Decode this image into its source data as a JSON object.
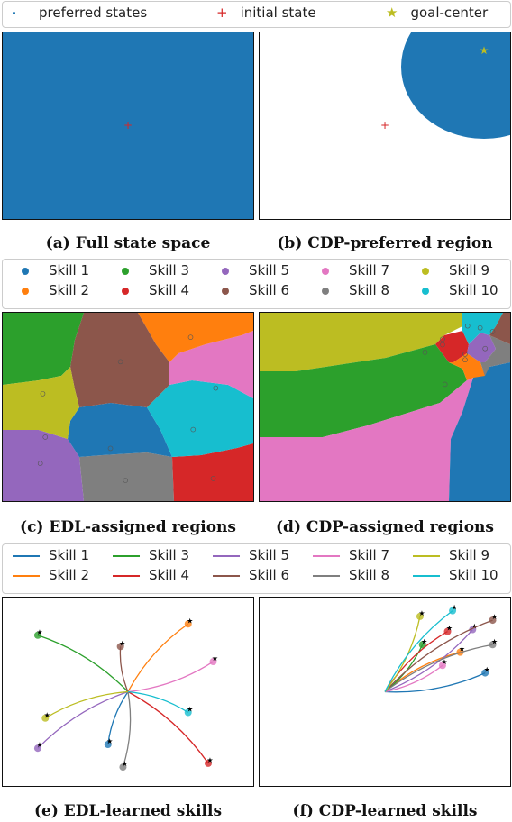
{
  "colors": {
    "skill": [
      "#1f77b4",
      "#ff7f0e",
      "#2ca02c",
      "#d62728",
      "#9467bd",
      "#8c564b",
      "#e377c2",
      "#7f7f7f",
      "#bcbd22",
      "#17becf"
    ],
    "preferred": "#1f77b4",
    "initial": "#d62728",
    "goal": "#bcbd22"
  },
  "top_legend": {
    "items": [
      {
        "marker": "dot",
        "label": "preferred states"
      },
      {
        "marker": "plus",
        "label": "initial state"
      },
      {
        "marker": "star",
        "label": "goal-center"
      }
    ]
  },
  "skills": [
    "Skill 1",
    "Skill 2",
    "Skill 3",
    "Skill 4",
    "Skill 5",
    "Skill 6",
    "Skill 7",
    "Skill 8",
    "Skill 9",
    "Skill 10"
  ],
  "captions": {
    "a": "(a) Full state space",
    "b": "(b) CDP-preferred region",
    "c": "(c) EDL-assigned regions",
    "d": "(d) CDP-assigned regions",
    "e": "(e) EDL-learned skills",
    "f": "(f) CDP-learned skills"
  },
  "chart_data": [
    {
      "panel": "a",
      "type": "scatter",
      "preferred_region": "entire state space",
      "initial_state": [
        0.5,
        0.5
      ]
    },
    {
      "panel": "b",
      "type": "scatter",
      "preferred_region": "circle around goal-center",
      "goal_center": [
        0.88,
        0.86
      ],
      "initial_state": [
        0.5,
        0.5
      ]
    },
    {
      "panel": "c",
      "type": "heatmap",
      "regions": "Voronoi cells, one per skill",
      "centers": [
        [
          0.43,
          0.28
        ],
        [
          0.75,
          0.87
        ],
        [
          0.16,
          0.57
        ],
        [
          0.84,
          0.12
        ],
        [
          0.15,
          0.2
        ],
        [
          0.47,
          0.74
        ],
        [
          0.85,
          0.6
        ],
        [
          0.49,
          0.11
        ],
        [
          0.17,
          0.34
        ],
        [
          0.76,
          0.38
        ]
      ]
    },
    {
      "panel": "d",
      "type": "heatmap",
      "regions": "Voronoi cells, one per skill",
      "centers": [
        [
          0.82,
          0.78
        ],
        [
          0.82,
          0.75
        ],
        [
          0.73,
          0.86
        ],
        [
          0.73,
          0.83
        ],
        [
          0.83,
          0.93
        ],
        [
          0.93,
          0.9
        ],
        [
          0.74,
          0.62
        ],
        [
          0.9,
          0.81
        ],
        [
          0.66,
          0.79
        ],
        [
          0.88,
          0.92
        ]
      ]
    },
    {
      "panel": "e",
      "type": "line",
      "start": [
        0.5,
        0.5
      ],
      "series": [
        {
          "name": "Skill 1",
          "end": [
            0.42,
            0.22
          ]
        },
        {
          "name": "Skill 2",
          "end": [
            0.74,
            0.86
          ]
        },
        {
          "name": "Skill 3",
          "end": [
            0.14,
            0.8
          ]
        },
        {
          "name": "Skill 4",
          "end": [
            0.82,
            0.12
          ]
        },
        {
          "name": "Skill 5",
          "end": [
            0.14,
            0.2
          ]
        },
        {
          "name": "Skill 6",
          "end": [
            0.47,
            0.74
          ]
        },
        {
          "name": "Skill 7",
          "end": [
            0.84,
            0.66
          ]
        },
        {
          "name": "Skill 8",
          "end": [
            0.48,
            0.1
          ]
        },
        {
          "name": "Skill 9",
          "end": [
            0.17,
            0.36
          ]
        },
        {
          "name": "Skill 10",
          "end": [
            0.74,
            0.39
          ]
        }
      ]
    },
    {
      "panel": "f",
      "type": "line",
      "start": [
        0.5,
        0.5
      ],
      "series": [
        {
          "name": "Skill 1",
          "end": [
            0.9,
            0.6
          ]
        },
        {
          "name": "Skill 2",
          "end": [
            0.8,
            0.71
          ]
        },
        {
          "name": "Skill 3",
          "end": [
            0.65,
            0.75
          ]
        },
        {
          "name": "Skill 4",
          "end": [
            0.75,
            0.82
          ]
        },
        {
          "name": "Skill 5",
          "end": [
            0.85,
            0.83
          ]
        },
        {
          "name": "Skill 6",
          "end": [
            0.93,
            0.88
          ]
        },
        {
          "name": "Skill 7",
          "end": [
            0.73,
            0.64
          ]
        },
        {
          "name": "Skill 8",
          "end": [
            0.93,
            0.75
          ]
        },
        {
          "name": "Skill 9",
          "end": [
            0.64,
            0.9
          ]
        },
        {
          "name": "Skill 10",
          "end": [
            0.77,
            0.93
          ]
        }
      ]
    }
  ]
}
